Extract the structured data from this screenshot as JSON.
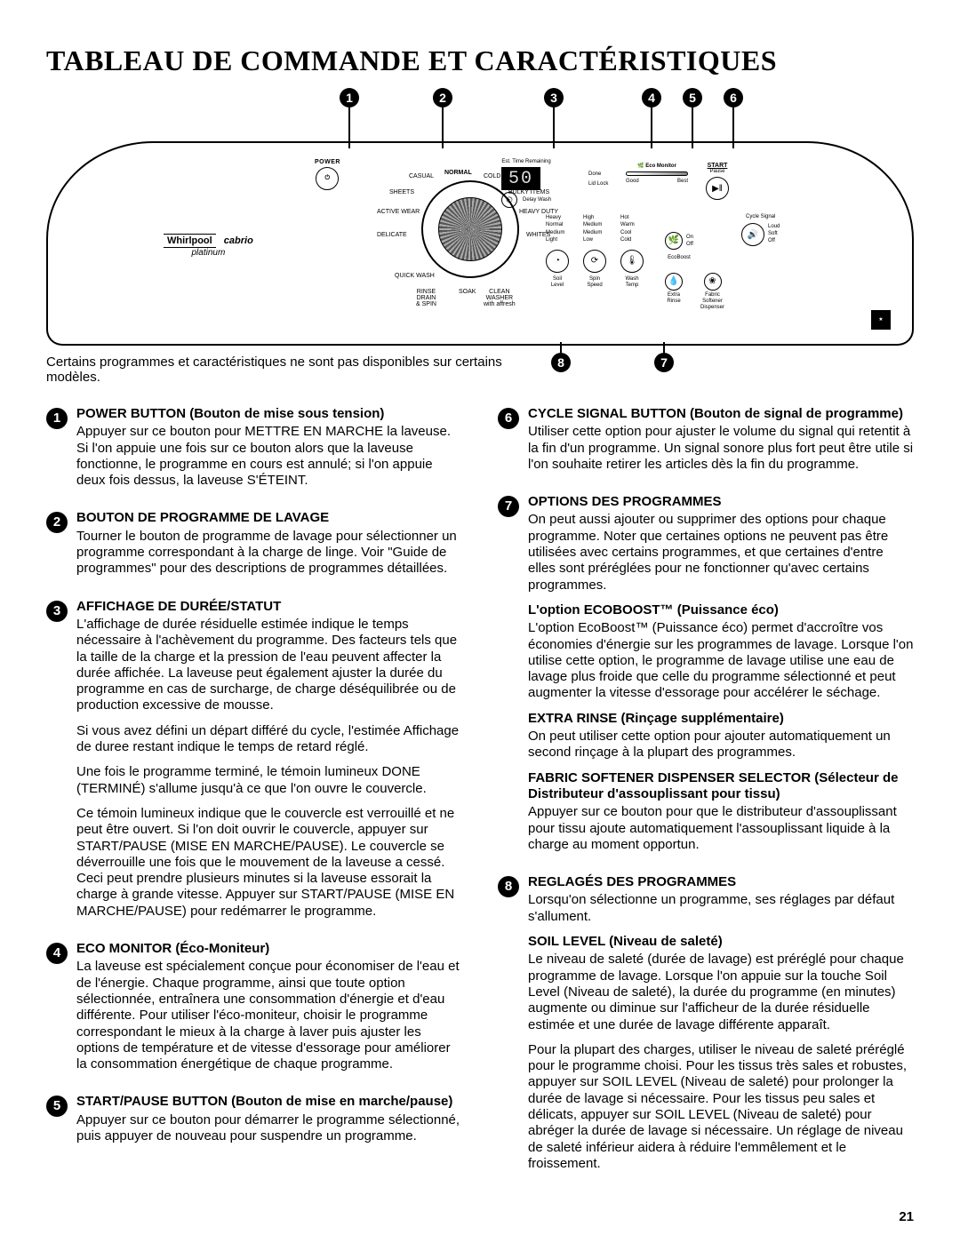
{
  "page": {
    "title": "TABLEAU DE COMMANDE ET CARACTÉRISTIQUES",
    "availability_note": "Certains programmes et caractéristiques ne sont pas disponibles sur certains modèles.",
    "page_number": "21"
  },
  "panel": {
    "brand": {
      "main": "Whirlpool",
      "line": "cabrio",
      "variant": "platinum"
    },
    "power_label": "POWER",
    "display_caption": "Est. Time Remaining",
    "display_value": "50",
    "delay_wash": "Delay Wash",
    "done": "Done",
    "lid_lock": "Lid Lock",
    "eco_monitor": "Eco Monitor",
    "eco_good": "Good",
    "eco_best": "Best",
    "start": "START",
    "pause": "Pause",
    "cycle_signal": "Cycle Signal",
    "cycle_levels": "Loud\nSoft\nOff",
    "ecoboost_on": "On",
    "ecoboost_off": "Off",
    "ecoboost": "EcoBoost",
    "dial": {
      "normal": "NORMAL",
      "casual": "CASUAL",
      "coldwash": "COLD WASH",
      "sheets": "SHEETS",
      "bulky": "BULKY ITEMS",
      "active": "ACTIVE WEAR",
      "heavy": "HEAVY DUTY",
      "delicate": "DELICATE",
      "whites": "WHITES",
      "quick": "QUICK WASH",
      "rinse": "RINSE\nDRAIN\n& SPIN",
      "soak": "SOAK",
      "clean": "CLEAN\nWASHER\nwith affresh"
    },
    "soil": {
      "title": "Soil\nLevel",
      "opts": "Heavy\nNormal\nMedium\nLight"
    },
    "spin": {
      "title": "Spin\nSpeed",
      "opts": "High\nMedium\nMedium\nLow"
    },
    "temp": {
      "title": "Wash\nTemp",
      "opts": "Hot\nWarm\nCool\nCold"
    },
    "extra_rinse": "Extra\nRinse",
    "fabric": "Fabric\nSoftener\nDispenser"
  },
  "callouts": {
    "1": "1",
    "2": "2",
    "3": "3",
    "4": "4",
    "5": "5",
    "6": "6",
    "7": "7",
    "8": "8"
  },
  "sections": [
    {
      "n": "1",
      "title": "POWER BUTTON (Bouton de mise sous tension)",
      "paras": [
        "Appuyer sur ce bouton pour METTRE EN MARCHE la laveuse. Si l'on appuie une fois sur ce bouton alors que la laveuse fonctionne, le programme en cours est annulé; si l'on appuie deux fois dessus, la laveuse S'ÉTEINT."
      ]
    },
    {
      "n": "2",
      "title": "BOUTON DE PROGRAMME DE LAVAGE",
      "paras": [
        "Tourner le bouton de programme de lavage pour sélectionner un programme correspondant à la charge de linge. Voir \"Guide de programmes\" pour des descriptions de programmes détaillées."
      ]
    },
    {
      "n": "3",
      "title": "AFFICHAGE DE DURÉE/STATUT",
      "paras": [
        "L'affichage de durée résiduelle estimée indique le temps nécessaire à l'achèvement du programme. Des facteurs tels que la taille de la charge et la pression de l'eau peuvent affecter la durée affichée. La laveuse peut également ajuster la durée du programme en cas de surcharge, de charge déséquilibrée ou de production excessive de mousse.",
        "Si vous avez défini un départ différé du cycle, l'estimée Affichage de duree restant indique le temps de retard réglé.",
        "Une fois le programme terminé, le témoin lumineux DONE (TERMINÉ) s'allume jusqu'à ce que l'on ouvre le couvercle.",
        "Ce témoin lumineux indique que le couvercle est verrouillé et ne peut être ouvert. Si l'on doit ouvrir le couvercle, appuyer sur START/PAUSE (MISE EN MARCHE/PAUSE). Le couvercle se déverrouille une fois que le mouvement de la laveuse a cessé. Ceci peut prendre plusieurs minutes si la laveuse essorait la charge à grande vitesse. Appuyer sur START/PAUSE (MISE EN MARCHE/PAUSE) pour redémarrer le programme."
      ]
    },
    {
      "n": "4",
      "title": "ECO MONITOR (Éco-Moniteur)",
      "paras": [
        "La laveuse est spécialement conçue pour économiser de l'eau et de l'énergie. Chaque programme, ainsi que toute option sélectionnée, entraînera une consommation d'énergie et d'eau différente. Pour utiliser l'éco-moniteur, choisir le programme correspondant le mieux à la charge à laver puis ajuster les options de température et de vitesse d'essorage pour améliorer la consommation énergétique de chaque programme."
      ]
    },
    {
      "n": "5",
      "title": "START/PAUSE BUTTON (Bouton de mise en marche/pause)",
      "paras": [
        "Appuyer sur ce bouton pour démarrer le programme sélectionné, puis appuyer de nouveau pour suspendre un programme."
      ]
    },
    {
      "n": "6",
      "title": "CYCLE SIGNAL BUTTON (Bouton de signal de programme)",
      "paras": [
        "Utiliser cette option pour ajuster le volume du signal qui retentit à la fin d'un programme. Un signal sonore plus fort peut être utile si l'on souhaite retirer les articles dès la fin du programme."
      ]
    },
    {
      "n": "7",
      "title": "OPTIONS DES PROGRAMMES",
      "paras": [
        "On peut aussi ajouter ou supprimer des options pour chaque programme. Noter que certaines options ne peuvent pas être utilisées avec certains programmes, et que certaines d'entre elles sont préréglées pour ne fonctionner qu'avec certains programmes."
      ],
      "subs": [
        {
          "h": "L'option ECOBOOST™ (Puissance éco)",
          "p": "L'option EcoBoost™ (Puissance éco) permet d'accroître vos économies d'énergie sur les programmes de lavage. Lorsque l'on utilise cette option, le programme de lavage utilise une eau de lavage plus froide que celle du programme sélectionné et peut augmenter la vitesse d'essorage pour accélérer le séchage."
        },
        {
          "h": "EXTRA RINSE (Rinçage supplémentaire)",
          "p": "On peut utiliser cette option pour ajouter automatiquement un second rinçage à la plupart des programmes."
        },
        {
          "h": "FABRIC SOFTENER DISPENSER SELECTOR (Sélecteur de Distributeur d'assouplissant pour tissu)",
          "p": "Appuyer sur ce bouton pour que le distributeur d'assouplissant pour tissu ajoute automatiquement l'assouplissant liquide à la charge au moment opportun."
        }
      ]
    },
    {
      "n": "8",
      "title": "REGLAGÉS DES PROGRAMMES",
      "paras": [
        "Lorsqu'on sélectionne un programme, ses réglages par défaut s'allument."
      ],
      "subs": [
        {
          "h": "SOIL LEVEL (Niveau de saleté)",
          "p": "Le niveau de saleté (durée de lavage) est préréglé pour chaque programme de lavage. Lorsque l'on appuie sur la touche Soil Level (Niveau de saleté), la durée du programme (en minutes) augmente ou diminue sur l'afficheur de la durée résiduelle estimée et une durée de lavage différente apparaît."
        },
        {
          "h": "",
          "p": "Pour la plupart des charges, utiliser le niveau de saleté préréglé pour le programme choisi. Pour les tissus très sales et robustes, appuyer sur SOIL LEVEL (Niveau de saleté) pour prolonger la durée de lavage si nécessaire. Pour les tissus peu sales et délicats, appuyer sur SOIL LEVEL (Niveau de saleté) pour abréger la durée de lavage si nécessaire. Un réglage de niveau de saleté inférieur aidera à réduire l'emmêlement et le froissement."
        }
      ]
    }
  ]
}
